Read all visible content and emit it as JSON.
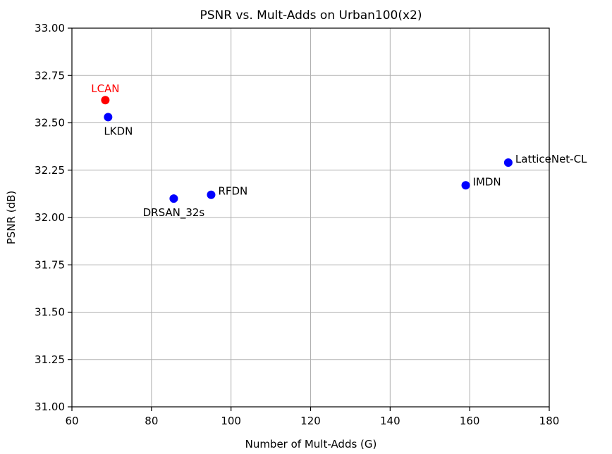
{
  "chart_data": {
    "type": "scatter",
    "title": "PSNR vs. Mult-Adds on Urban100(x2)",
    "xlabel": "Number of Mult-Adds (G)",
    "ylabel": "PSNR (dB)",
    "xlim": [
      60,
      180
    ],
    "ylim": [
      31.0,
      33.0
    ],
    "xticks": [
      "60",
      "80",
      "100",
      "120",
      "140",
      "160",
      "180"
    ],
    "yticks": [
      "31.00",
      "31.25",
      "31.50",
      "31.75",
      "32.00",
      "32.25",
      "32.50",
      "32.75",
      "33.00"
    ],
    "grid": true,
    "points": [
      {
        "name": "LCAN",
        "x": 68.4,
        "y": 32.62,
        "color": "#ff0000",
        "label_color": "#ff0000",
        "label_pos": "above"
      },
      {
        "name": "LKDN",
        "x": 69.1,
        "y": 32.53,
        "color": "#0000ff",
        "label_color": "#000000",
        "label_pos": "below"
      },
      {
        "name": "DRSAN_32s",
        "x": 85.6,
        "y": 32.1,
        "color": "#0000ff",
        "label_color": "#000000",
        "label_pos": "below-left"
      },
      {
        "name": "RFDN",
        "x": 95.0,
        "y": 32.12,
        "color": "#0000ff",
        "label_color": "#000000",
        "label_pos": "right"
      },
      {
        "name": "IMDN",
        "x": 159.0,
        "y": 32.17,
        "color": "#0000ff",
        "label_color": "#000000",
        "label_pos": "right"
      },
      {
        "name": "LatticeNet-CL",
        "x": 169.7,
        "y": 32.29,
        "color": "#0000ff",
        "label_color": "#000000",
        "label_pos": "right"
      }
    ]
  }
}
